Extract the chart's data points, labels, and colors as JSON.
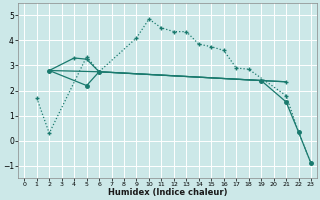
{
  "xlabel": "Humidex (Indice chaleur)",
  "bg_color": "#cce8e8",
  "grid_color": "#b8d8d8",
  "line_color": "#1a7a6e",
  "ylim": [
    -1.5,
    5.5
  ],
  "xlim": [
    -0.5,
    23.5
  ],
  "yticks": [
    -1,
    0,
    1,
    2,
    3,
    4,
    5
  ],
  "xticks": [
    0,
    1,
    2,
    3,
    4,
    5,
    6,
    7,
    8,
    9,
    10,
    11,
    12,
    13,
    14,
    15,
    16,
    17,
    18,
    19,
    20,
    21,
    22,
    23
  ],
  "line1_x": [
    1,
    2,
    5,
    6,
    9,
    10,
    11,
    12,
    13,
    14,
    15,
    16,
    17,
    18,
    21,
    22,
    23
  ],
  "line1_y": [
    1.7,
    0.3,
    3.35,
    2.75,
    4.1,
    4.85,
    4.5,
    4.35,
    4.35,
    3.85,
    3.75,
    3.6,
    2.9,
    2.85,
    1.8,
    0.35,
    -0.9
  ],
  "line2_x": [
    2,
    4,
    5,
    6,
    19,
    21
  ],
  "line2_y": [
    2.8,
    3.3,
    3.25,
    2.75,
    2.4,
    2.35
  ],
  "line3_x": [
    2,
    6,
    19,
    21
  ],
  "line3_y": [
    2.8,
    2.75,
    2.4,
    2.35
  ],
  "line4_x": [
    2,
    5,
    6,
    19,
    21,
    22,
    23
  ],
  "line4_y": [
    2.8,
    2.2,
    2.75,
    2.4,
    1.55,
    0.35,
    -0.9
  ]
}
